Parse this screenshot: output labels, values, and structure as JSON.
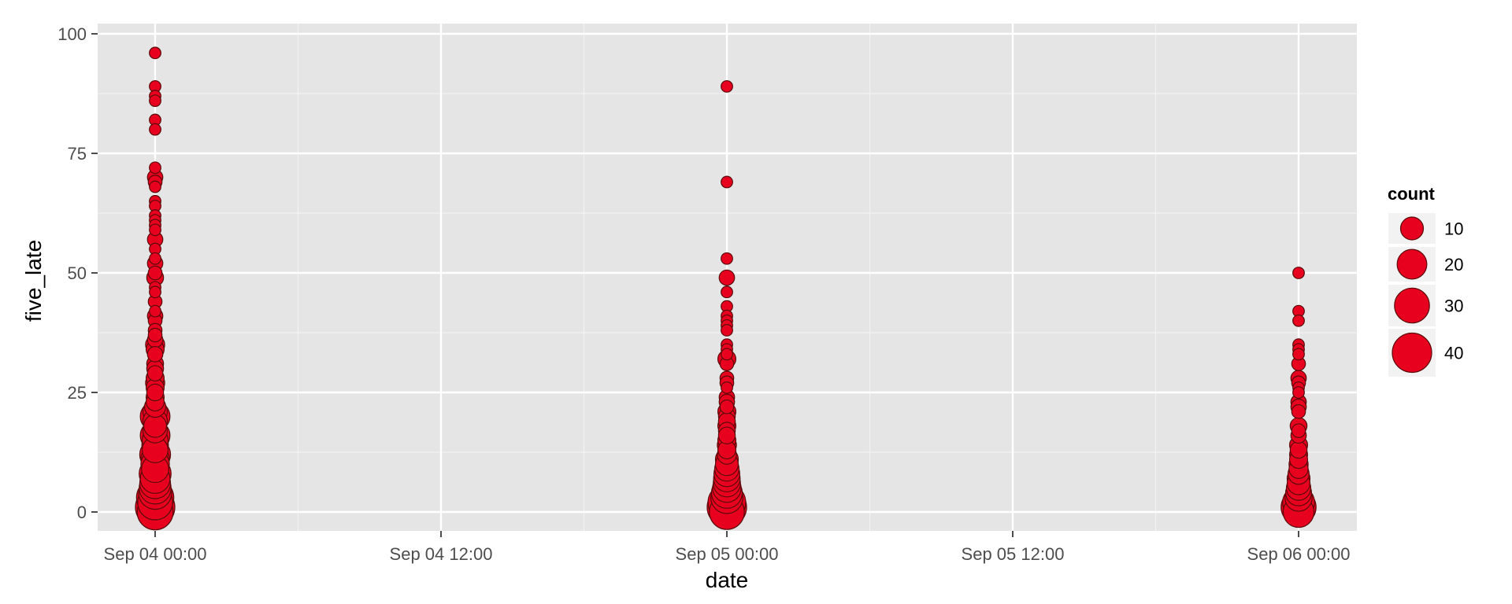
{
  "chart_data": {
    "type": "scatter",
    "title": "",
    "xlabel": "date",
    "ylabel": "five_late",
    "x_ticks": [
      "Sep 04 00:00",
      "Sep 04 12:00",
      "Sep 05 00:00",
      "Sep 05 12:00",
      "Sep 06 00:00"
    ],
    "y_ticks": [
      "0",
      "25",
      "50",
      "75",
      "100"
    ],
    "ylim": [
      -4,
      100
    ],
    "xlim": [
      "Sep 03 21:36",
      "Sep 06 02:24"
    ],
    "grid": true,
    "legend": {
      "title": "count",
      "placement": "right",
      "entries": [
        {
          "label": "10",
          "value": 10
        },
        {
          "label": "20",
          "value": 20
        },
        {
          "label": "30",
          "value": 30
        },
        {
          "label": "40",
          "value": 40
        }
      ]
    },
    "point_fill": "#e8001f",
    "point_stroke": "#5a0a0a",
    "panel_background": "#e5e5e5",
    "series": [
      {
        "x": "Sep 04 00:00",
        "points": [
          [
            96,
            1
          ],
          [
            89,
            1
          ],
          [
            87,
            1
          ],
          [
            86,
            1
          ],
          [
            82,
            1
          ],
          [
            80,
            1
          ],
          [
            72,
            1
          ],
          [
            70,
            3
          ],
          [
            69,
            2
          ],
          [
            68,
            1
          ],
          [
            65,
            1
          ],
          [
            64,
            1
          ],
          [
            62,
            1
          ],
          [
            61,
            1
          ],
          [
            60,
            1
          ],
          [
            59,
            1
          ],
          [
            57,
            3
          ],
          [
            55,
            1
          ],
          [
            53,
            1
          ],
          [
            52,
            3
          ],
          [
            50,
            2
          ],
          [
            49,
            4
          ],
          [
            47,
            1
          ],
          [
            46,
            1
          ],
          [
            44,
            2
          ],
          [
            42,
            1
          ],
          [
            41,
            3
          ],
          [
            40,
            2
          ],
          [
            38,
            2
          ],
          [
            37,
            2
          ],
          [
            36,
            3
          ],
          [
            35,
            6
          ],
          [
            34,
            5
          ],
          [
            33,
            3
          ],
          [
            31,
            4
          ],
          [
            30,
            4
          ],
          [
            29,
            3
          ],
          [
            28,
            5
          ],
          [
            27,
            6
          ],
          [
            26,
            5
          ],
          [
            25,
            4
          ],
          [
            24,
            5
          ],
          [
            23,
            5
          ],
          [
            22,
            8
          ],
          [
            21,
            12
          ],
          [
            20,
            20
          ],
          [
            19,
            12
          ],
          [
            18,
            10
          ],
          [
            17,
            12
          ],
          [
            16,
            20
          ],
          [
            15,
            14
          ],
          [
            14,
            15
          ],
          [
            13,
            14
          ],
          [
            12,
            22
          ],
          [
            11,
            18
          ],
          [
            10,
            18
          ],
          [
            9,
            16
          ],
          [
            8,
            24
          ],
          [
            7,
            20
          ],
          [
            6,
            22
          ],
          [
            5,
            24
          ],
          [
            4,
            26
          ],
          [
            3,
            35
          ],
          [
            2,
            30
          ],
          [
            1,
            40
          ],
          [
            0,
            32
          ]
        ]
      },
      {
        "x": "Sep 05 00:00",
        "points": [
          [
            89,
            1
          ],
          [
            69,
            1
          ],
          [
            53,
            1
          ],
          [
            49,
            3
          ],
          [
            46,
            1
          ],
          [
            43,
            1
          ],
          [
            41,
            1
          ],
          [
            40,
            1
          ],
          [
            39,
            1
          ],
          [
            38,
            1
          ],
          [
            35,
            1
          ],
          [
            34,
            1
          ],
          [
            33,
            1
          ],
          [
            32,
            5
          ],
          [
            31,
            2
          ],
          [
            28,
            2
          ],
          [
            27,
            2
          ],
          [
            26,
            1
          ],
          [
            24,
            3
          ],
          [
            23,
            3
          ],
          [
            22,
            2
          ],
          [
            21,
            5
          ],
          [
            20,
            4
          ],
          [
            19,
            4
          ],
          [
            18,
            5
          ],
          [
            17,
            4
          ],
          [
            16,
            4
          ],
          [
            15,
            5
          ],
          [
            14,
            6
          ],
          [
            13,
            5
          ],
          [
            12,
            6
          ],
          [
            11,
            10
          ],
          [
            10,
            10
          ],
          [
            9,
            12
          ],
          [
            8,
            14
          ],
          [
            7,
            15
          ],
          [
            6,
            16
          ],
          [
            5,
            18
          ],
          [
            4,
            22
          ],
          [
            3,
            24
          ],
          [
            2,
            36
          ],
          [
            1,
            40
          ],
          [
            0,
            30
          ]
        ]
      },
      {
        "x": "Sep 06 00:00",
        "points": [
          [
            50,
            1
          ],
          [
            42,
            1
          ],
          [
            40,
            1
          ],
          [
            35,
            1
          ],
          [
            34,
            1
          ],
          [
            33,
            1
          ],
          [
            31,
            2
          ],
          [
            28,
            3
          ],
          [
            27,
            2
          ],
          [
            26,
            1
          ],
          [
            25,
            1
          ],
          [
            23,
            3
          ],
          [
            22,
            3
          ],
          [
            21,
            2
          ],
          [
            18,
            4
          ],
          [
            17,
            2
          ],
          [
            16,
            3
          ],
          [
            14,
            5
          ],
          [
            13,
            4
          ],
          [
            12,
            5
          ],
          [
            11,
            5
          ],
          [
            10,
            6
          ],
          [
            9,
            6
          ],
          [
            8,
            8
          ],
          [
            7,
            10
          ],
          [
            6,
            10
          ],
          [
            5,
            12
          ],
          [
            4,
            14
          ],
          [
            3,
            16
          ],
          [
            2,
            24
          ],
          [
            1,
            30
          ],
          [
            0,
            22
          ]
        ]
      }
    ]
  }
}
